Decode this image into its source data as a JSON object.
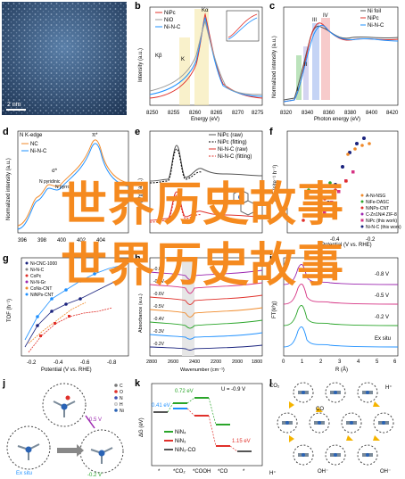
{
  "overlay": {
    "line1": "世界历史故事",
    "line2": "世界历史故事"
  },
  "panels": {
    "a": {
      "label": "a",
      "scalebar": "2 nm"
    },
    "b": {
      "label": "b",
      "xlabel": "Energy (eV)",
      "ylabel": "Intensity (a.u.)",
      "xticks": [
        "8250",
        "8255",
        "8260",
        "8265",
        "8270",
        "8275"
      ],
      "legend": [
        "NiPc",
        "NiO",
        "Ni-N-C"
      ],
      "annotations": [
        "Kα",
        "Kβ",
        "K"
      ]
    },
    "c": {
      "label": "c",
      "xlabel": "Photon energy (eV)",
      "ylabel": "Normalized intensity (a.u.)",
      "xticks": [
        "8320",
        "8340",
        "8360",
        "8380",
        "8400",
        "8420"
      ],
      "legend": [
        "Ni foil",
        "NiPc",
        "Ni-N-C"
      ],
      "annotations": [
        "I",
        "II",
        "III",
        "IV"
      ]
    },
    "d": {
      "label": "d",
      "title": "N K-edge",
      "ylabel": "Normalized intensity (a.u.)",
      "legend": [
        "NC",
        "Ni-N-C"
      ],
      "annotations": [
        "π*",
        "σ*",
        "N pyridinic",
        "N pyrrolic"
      ],
      "xticks": [
        "396",
        "398",
        "400",
        "402",
        "404"
      ]
    },
    "e": {
      "label": "e",
      "ylabel": "FT(k³χ) (a.u.)",
      "legend": [
        "NiPc (raw)",
        "NiPc (fitting)",
        "Ni-N-C (raw)",
        "Ni-N-C (fitting)"
      ]
    },
    "f": {
      "label": "f",
      "xlabel": "Potential (V vs. RHE)",
      "ylabel": "TOF (site⁻¹ h⁻¹)",
      "xticks": [
        "-0.4",
        "-0.2"
      ],
      "legend": [
        "A-Ni-NSG",
        "NiFe-DASC",
        "NiNPs-CNT",
        "C-Zn1Ni4 ZIF-8",
        "NiPc (this work)",
        "Ni-N-C (this work)"
      ]
    },
    "g": {
      "label": "g",
      "xlabel": "Potential (V vs. RHE)",
      "ylabel": "TOF (h⁻¹)",
      "xticks": [
        "-0.2",
        "-0.4",
        "-0.6",
        "-0.8"
      ],
      "legend": [
        "Ni-CNC-1000",
        "Ni-N-C",
        "CoPc",
        "Ni-N-Gr",
        "CoNs-CNT",
        "NiNPs-CNT"
      ]
    },
    "h": {
      "label": "h",
      "xlabel": "Wavenumber (cm⁻¹)",
      "ylabel": "Absorbance (a.u.)",
      "xticks": [
        "2800",
        "2600",
        "2400",
        "2200",
        "2000",
        "1800"
      ],
      "curve_labels": [
        "-0.8V",
        "-0.7V",
        "-0.6V",
        "-0.5V",
        "-0.4V",
        "-0.3V",
        "-0.2V"
      ]
    },
    "i": {
      "label": "i",
      "xlabel": "R (Å)",
      "ylabel": "FT(k³χ)",
      "curve_labels": [
        "-0.8 V",
        "-0.5 V",
        "-0.2 V",
        "Ex situ"
      ],
      "xticks": [
        "0",
        "1",
        "2",
        "3",
        "4",
        "5",
        "6"
      ]
    },
    "j": {
      "label": "j",
      "labels": [
        "-0.5 V",
        "-0.2 V",
        "Ex situ"
      ],
      "legend": [
        "C",
        "O",
        "N",
        "H",
        "Ni"
      ]
    },
    "k": {
      "label": "k",
      "ylabel": "ΔG (eV)",
      "condition": "U = -0.9 V",
      "legend": [
        "NiN₄",
        "NiN₃",
        "NiN₃-CO"
      ],
      "energies": [
        "0.41 eV",
        "0.72 eV",
        "1.15 eV"
      ],
      "xticks": [
        "*",
        "*CO₂",
        "*COOH",
        "*CO",
        "*"
      ]
    },
    "l": {
      "label": "l",
      "species": [
        "CO₂",
        "CO",
        "H⁺",
        "OH⁻"
      ]
    }
  },
  "colors": {
    "overlay": "#f58a1f",
    "orange": "#f08a2a",
    "blue": "#1e90ff",
    "red": "#e0302a",
    "green": "#2aa52a"
  }
}
